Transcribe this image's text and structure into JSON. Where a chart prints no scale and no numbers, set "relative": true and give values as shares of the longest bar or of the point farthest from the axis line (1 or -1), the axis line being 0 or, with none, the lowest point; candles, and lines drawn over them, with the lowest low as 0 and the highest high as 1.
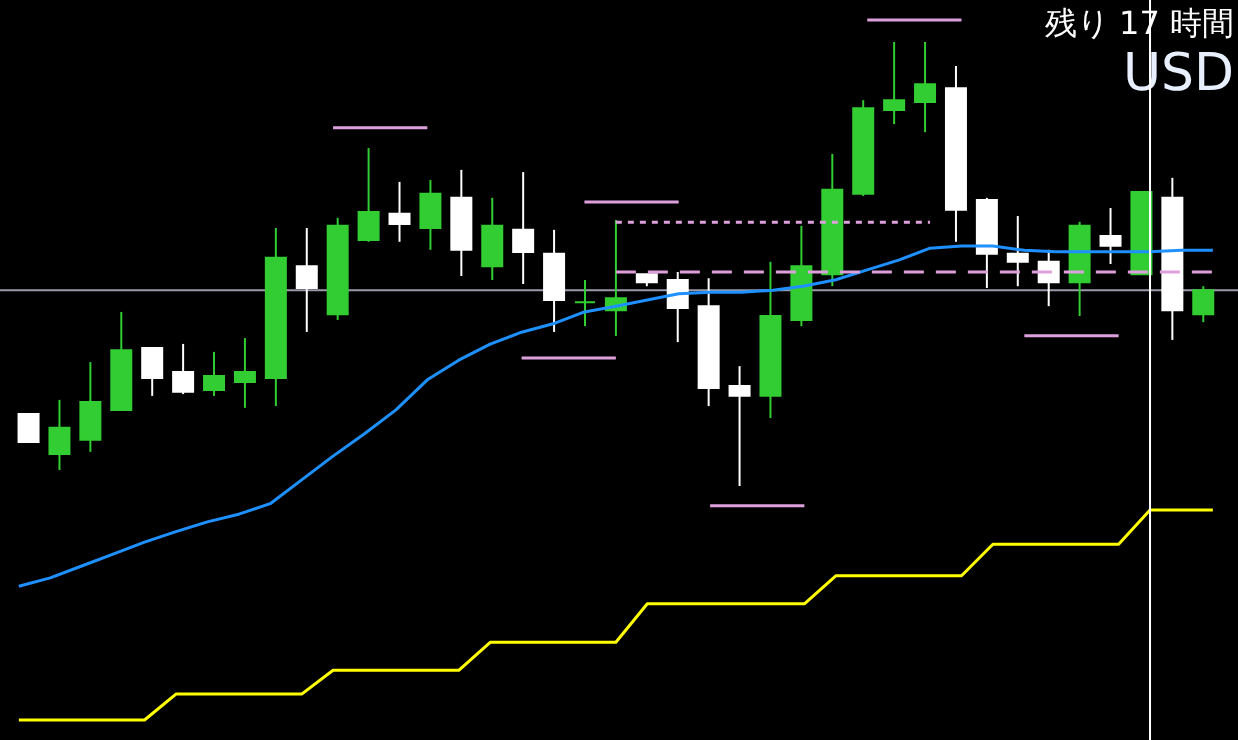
{
  "chart_data": [
    {
      "type": "candlestick",
      "relative": true,
      "tick_labels": false,
      "annotations": [
        "残り 17 時間",
        "USD"
      ],
      "categories": [
        null,
        null,
        null,
        null,
        null,
        null,
        null,
        null,
        null,
        null,
        null,
        null,
        null,
        null,
        null,
        null,
        null,
        null,
        null,
        null,
        null,
        null,
        null,
        null,
        null,
        null,
        null,
        null,
        null,
        null,
        null,
        null,
        null,
        null,
        null,
        null,
        null,
        null,
        null
      ],
      "ohlc": [
        [
          0.162,
          0.162,
          0.099,
          0.099
        ],
        [
          0.072,
          0.194,
          0.036,
          0.131
        ],
        [
          0.104,
          0.279,
          0.077,
          0.189
        ],
        [
          0.171,
          0.392,
          0.171,
          0.306
        ],
        [
          0.311,
          0.311,
          0.203,
          0.243
        ],
        [
          0.257,
          0.32,
          0.207,
          0.212
        ],
        [
          0.216,
          0.302,
          0.203,
          0.248
        ],
        [
          0.234,
          0.333,
          0.176,
          0.257
        ],
        [
          0.243,
          0.581,
          0.18,
          0.514
        ],
        [
          0.495,
          0.581,
          0.347,
          0.446
        ],
        [
          0.387,
          0.604,
          0.374,
          0.586
        ],
        [
          0.554,
          0.761,
          0.55,
          0.617
        ],
        [
          0.613,
          0.685,
          0.55,
          0.59
        ],
        [
          0.581,
          0.689,
          0.532,
          0.658
        ],
        [
          0.649,
          0.712,
          0.473,
          0.532
        ],
        [
          0.495,
          0.649,
          0.464,
          0.586
        ],
        [
          0.577,
          0.707,
          0.455,
          0.527
        ],
        [
          0.523,
          0.577,
          0.347,
          0.419
        ],
        [
          0.414,
          0.464,
          0.36,
          0.414
        ],
        [
          0.396,
          0.599,
          0.338,
          0.423
        ],
        [
          0.477,
          0.477,
          0.45,
          0.459
        ],
        [
          0.464,
          0.482,
          0.324,
          0.401
        ],
        [
          0.405,
          0.468,
          0.18,
          0.221
        ],
        [
          0.225,
          0.27,
          0,
          0.203
        ],
        [
          0.203,
          0.505,
          0.153,
          0.383
        ],
        [
          0.374,
          0.586,
          0.36,
          0.495
        ],
        [
          0.477,
          0.748,
          0.45,
          0.667
        ],
        [
          0.658,
          0.869,
          0.653,
          0.851
        ],
        [
          0.847,
          1,
          0.815,
          0.869
        ],
        [
          0.865,
          1,
          0.797,
          0.905
        ],
        [
          0.896,
          0.946,
          0.55,
          0.622
        ],
        [
          0.644,
          0.649,
          0.446,
          0.523
        ],
        [
          0.523,
          0.608,
          0.45,
          0.505
        ],
        [
          0.505,
          0.532,
          0.405,
          0.459
        ],
        [
          0.459,
          0.595,
          0.383,
          0.586
        ],
        [
          0.563,
          0.626,
          0.5,
          0.541
        ],
        [
          0.477,
          0.662,
          0.477,
          0.662
        ],
        [
          0.649,
          0.694,
          0.329,
          0.396
        ],
        [
          0.387,
          0.45,
          0.369,
          0.441
        ]
      ],
      "colors": [
        "#ffffff",
        "#32cd32",
        "#32cd32",
        "#32cd32",
        "#ffffff",
        "#ffffff",
        "#32cd32",
        "#32cd32",
        "#32cd32",
        "#ffffff",
        "#32cd32",
        "#32cd32",
        "#ffffff",
        "#32cd32",
        "#ffffff",
        "#32cd32",
        "#ffffff",
        "#ffffff",
        "#32cd32",
        "#32cd32",
        "#ffffff",
        "#ffffff",
        "#ffffff",
        "#ffffff",
        "#32cd32",
        "#32cd32",
        "#32cd32",
        "#32cd32",
        "#32cd32",
        "#32cd32",
        "#ffffff",
        "#ffffff",
        "#ffffff",
        "#ffffff",
        "#32cd32",
        "#ffffff",
        "#32cd32",
        "#ffffff",
        "#32cd32"
      ],
      "ref_lines": [
        {
          "axis": "y",
          "value": 0.441,
          "color": "#9a9aaa"
        }
      ]
    },
    {
      "type": "line",
      "relative": true,
      "tick_labels": false,
      "marker": "none",
      "categories": [
        null,
        null,
        null,
        null,
        null,
        null,
        null,
        null,
        null,
        null,
        null,
        null,
        null,
        null,
        null,
        null,
        null,
        null,
        null,
        null,
        null,
        null,
        null,
        null,
        null,
        null,
        null,
        null,
        null,
        null,
        null,
        null,
        null,
        null,
        null,
        null,
        null,
        null,
        null
      ],
      "series": [
        {
          "color": "#1e90ff",
          "line_style": "solid",
          "values": [
            0.191,
            0.203,
            0.22,
            0.237,
            0.254,
            0.269,
            0.283,
            0.294,
            0.309,
            0.343,
            0.377,
            0.409,
            0.443,
            0.486,
            0.514,
            0.537,
            0.554,
            0.566,
            0.583,
            0.591,
            0.6,
            0.609,
            0.611,
            0.611,
            0.614,
            0.62,
            0.629,
            0.643,
            0.657,
            0.674,
            0.677,
            0.677,
            0.671,
            0.669,
            0.669,
            0.669,
            0.669,
            0.671,
            0.671
          ]
        },
        {
          "color": "#ffff00",
          "line_style": "solid",
          "values": [
            0,
            0,
            0,
            0,
            0,
            0.037,
            0.037,
            0.037,
            0.037,
            0.037,
            0.071,
            0.071,
            0.071,
            0.071,
            0.071,
            0.111,
            0.111,
            0.111,
            0.111,
            0.111,
            0.166,
            0.166,
            0.166,
            0.166,
            0.166,
            0.166,
            0.206,
            0.206,
            0.206,
            0.206,
            0.206,
            0.251,
            0.251,
            0.251,
            0.251,
            0.251,
            0.3,
            0.3,
            0.3
          ]
        },
        {
          "color": "#dda0dd",
          "line_style": "solid",
          "values": [
            null,
            null,
            null,
            null,
            null,
            null,
            null,
            null,
            null,
            null,
            0.846,
            0.846,
            0.846,
            0.846,
            null,
            null,
            0.517,
            0.517,
            0.517,
            0.517,
            null,
            null,
            0.306,
            0.306,
            0.306,
            0.306,
            null,
            1,
            1,
            1,
            1,
            null,
            0.549,
            0.549,
            0.549,
            0.549,
            null,
            null,
            null
          ]
        },
        {
          "color": "#dda0dd",
          "line_style": "solid",
          "values": [
            null,
            null,
            null,
            null,
            null,
            null,
            null,
            null,
            null,
            null,
            null,
            null,
            null,
            null,
            null,
            null,
            null,
            null,
            0.74,
            0.74,
            0.74,
            0.74,
            null,
            null,
            null,
            null,
            null,
            null,
            null,
            null,
            null,
            null,
            null,
            null,
            null,
            null,
            null,
            null,
            null
          ]
        },
        {
          "color": "#dda0dd",
          "line_style": "dashed",
          "values": [
            null,
            null,
            null,
            null,
            null,
            null,
            null,
            null,
            null,
            null,
            null,
            null,
            null,
            null,
            null,
            null,
            null,
            null,
            null,
            0.64,
            0.64,
            0.64,
            0.64,
            0.64,
            0.64,
            0.64,
            0.64,
            0.64,
            0.64,
            0.64,
            0.64,
            0.64,
            0.64,
            0.64,
            0.64,
            0.64,
            0.64,
            0.64,
            0.64
          ]
        },
        {
          "color": "#dda0dd",
          "line_style": "dotted",
          "values": [
            null,
            null,
            null,
            null,
            null,
            null,
            null,
            null,
            null,
            null,
            null,
            null,
            null,
            null,
            null,
            null,
            null,
            null,
            null,
            0.711,
            0.711,
            0.711,
            0.711,
            0.711,
            0.711,
            0.711,
            0.711,
            0.711,
            0.711,
            0.711,
            null,
            null,
            null,
            null,
            null,
            null,
            null,
            null,
            null
          ]
        }
      ]
    }
  ]
}
